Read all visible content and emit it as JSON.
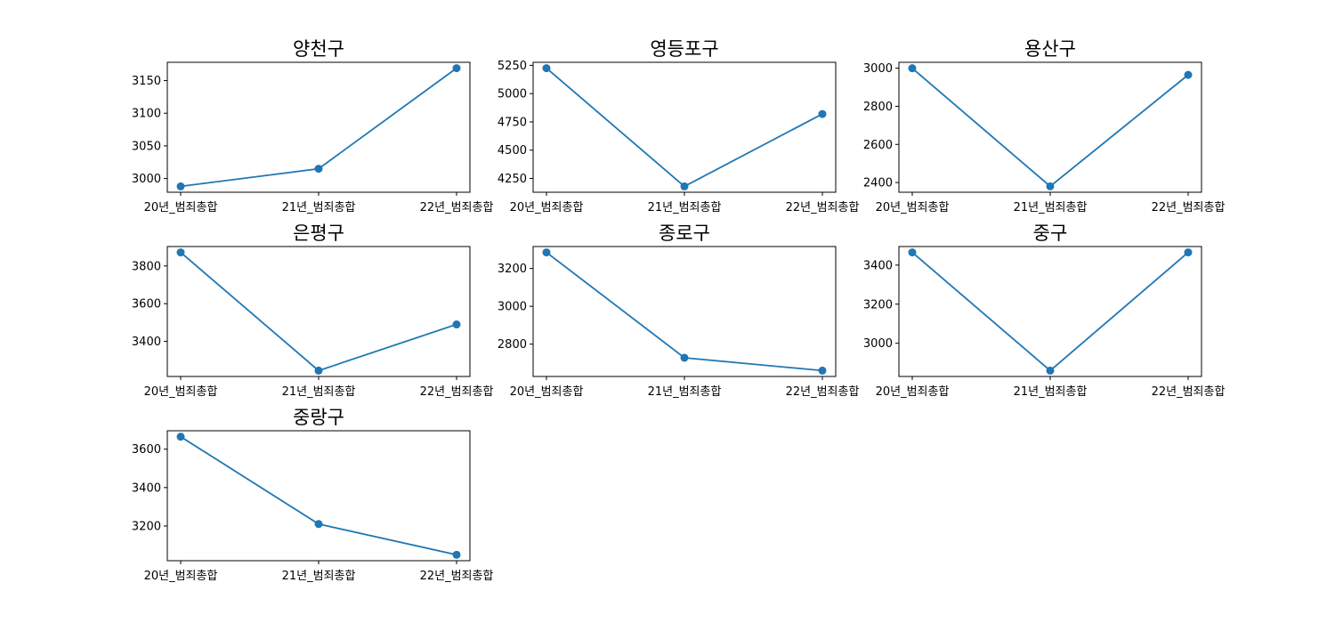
{
  "chart_data": [
    {
      "type": "line",
      "title": "양천구",
      "categories": [
        "20년_범죄총합",
        "21년_범죄총합",
        "22년_범죄총합"
      ],
      "values": [
        2988,
        3015,
        3169
      ],
      "ylim": [
        2979,
        3178
      ],
      "yticks": [
        3000,
        3050,
        3100,
        3150
      ],
      "xlabel": "",
      "ylabel": "",
      "grid": false,
      "color": "#1f77b4"
    },
    {
      "type": "line",
      "title": "영등포구",
      "categories": [
        "20년_범죄총합",
        "21년_범죄총합",
        "22년_범죄총합"
      ],
      "values": [
        5225,
        4180,
        4820
      ],
      "ylim": [
        4128,
        5277
      ],
      "yticks": [
        4250,
        4500,
        4750,
        5000,
        5250
      ],
      "xlabel": "",
      "ylabel": "",
      "grid": false,
      "color": "#1f77b4"
    },
    {
      "type": "line",
      "title": "용산구",
      "categories": [
        "20년_범죄총합",
        "21년_범죄총합",
        "22년_범죄총합"
      ],
      "values": [
        3000,
        2380,
        2965
      ],
      "ylim": [
        2349,
        3031
      ],
      "yticks": [
        2400,
        2600,
        2800,
        3000
      ],
      "xlabel": "",
      "ylabel": "",
      "grid": false,
      "color": "#1f77b4"
    },
    {
      "type": "line",
      "title": "은평구",
      "categories": [
        "20년_범죄총합",
        "21년_범죄총합",
        "22년_범죄총합"
      ],
      "values": [
        3872,
        3245,
        3490
      ],
      "ylim": [
        3214,
        3903
      ],
      "yticks": [
        3400,
        3600,
        3800
      ],
      "xlabel": "",
      "ylabel": "",
      "grid": false,
      "color": "#1f77b4"
    },
    {
      "type": "line",
      "title": "종로구",
      "categories": [
        "20년_범죄총합",
        "21년_범죄총합",
        "22년_범죄총합"
      ],
      "values": [
        3285,
        2728,
        2660
      ],
      "ylim": [
        2629,
        3316
      ],
      "yticks": [
        2800,
        3000,
        3200
      ],
      "xlabel": "",
      "ylabel": "",
      "grid": false,
      "color": "#1f77b4"
    },
    {
      "type": "line",
      "title": "중구",
      "categories": [
        "20년_범죄총합",
        "21년_범죄총합",
        "22년_범죄총합"
      ],
      "values": [
        3465,
        2860,
        3465
      ],
      "ylim": [
        2830,
        3495
      ],
      "yticks": [
        3000,
        3200,
        3400
      ],
      "xlabel": "",
      "ylabel": "",
      "grid": false,
      "color": "#1f77b4"
    },
    {
      "type": "line",
      "title": "중랑구",
      "categories": [
        "20년_범죄총합",
        "21년_범죄총합",
        "22년_범죄총합"
      ],
      "values": [
        3665,
        3210,
        3050
      ],
      "ylim": [
        3019,
        3696
      ],
      "yticks": [
        3200,
        3400,
        3600
      ],
      "xlabel": "",
      "ylabel": "",
      "grid": false,
      "color": "#1f77b4"
    }
  ]
}
